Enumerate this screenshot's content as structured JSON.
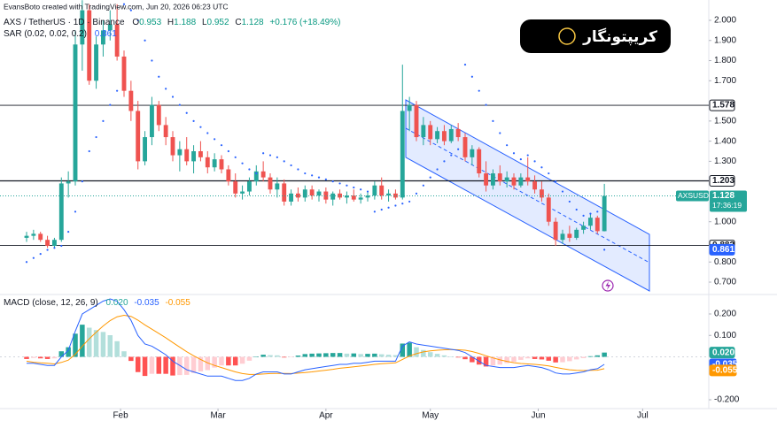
{
  "header": {
    "credit": "EvansBoto created with TradingView.com, Jun 20, 2026 06:23 UTC",
    "badge": "کریپتونگار"
  },
  "chart_data": [
    {
      "type": "candlestick",
      "title": "AXS / TetherUS · 1D · Binance",
      "symbol": "AXSUSDT",
      "countdown": "17:36:19",
      "ohlc_labels": [
        "O",
        "H",
        "L",
        "C"
      ],
      "change": "+0.176 (+18.49%)",
      "up_color": "#26a69a",
      "down_color": "#ef5350",
      "x": [
        4,
        6,
        8,
        10,
        12,
        14,
        16,
        18,
        20,
        22,
        24,
        26,
        28,
        30,
        32,
        34,
        36,
        38,
        40,
        42,
        44,
        46,
        48,
        50,
        52,
        54,
        56,
        58,
        60,
        62,
        64,
        66,
        68,
        70,
        72,
        74,
        76,
        78,
        80,
        82,
        84,
        86,
        88,
        90,
        92,
        94,
        96,
        98,
        100,
        102,
        104,
        106,
        108,
        110,
        112,
        114,
        116,
        118,
        120,
        122,
        124,
        126,
        128,
        130,
        132,
        134,
        136,
        138,
        140,
        142,
        144,
        146,
        148,
        150,
        152,
        154,
        156,
        158,
        160,
        162,
        164,
        166,
        168,
        170
      ],
      "ohlc": [
        [
          0.92,
          0.95,
          0.9,
          0.93
        ],
        [
          0.93,
          0.96,
          0.91,
          0.94
        ],
        [
          0.94,
          0.95,
          0.9,
          0.91
        ],
        [
          0.91,
          0.93,
          0.87,
          0.88
        ],
        [
          0.88,
          0.92,
          0.87,
          0.91
        ],
        [
          0.91,
          1.22,
          0.9,
          1.19
        ],
        [
          1.19,
          1.25,
          1.12,
          1.2
        ],
        [
          1.2,
          1.95,
          1.18,
          1.88
        ],
        [
          1.88,
          2.1,
          1.75,
          2.05
        ],
        [
          2.05,
          2.08,
          1.68,
          1.7
        ],
        [
          1.7,
          1.92,
          1.66,
          1.88
        ],
        [
          1.88,
          2.0,
          1.82,
          1.95
        ],
        [
          1.95,
          2.05,
          1.9,
          1.98
        ],
        [
          1.98,
          2.08,
          1.8,
          1.82
        ],
        [
          1.82,
          1.85,
          1.62,
          1.65
        ],
        [
          1.65,
          1.7,
          1.5,
          1.55
        ],
        [
          1.55,
          1.6,
          1.26,
          1.3
        ],
        [
          1.3,
          1.45,
          1.28,
          1.42
        ],
        [
          1.42,
          1.62,
          1.38,
          1.58
        ],
        [
          1.58,
          1.6,
          1.45,
          1.48
        ],
        [
          1.48,
          1.52,
          1.38,
          1.42
        ],
        [
          1.42,
          1.45,
          1.3,
          1.33
        ],
        [
          1.33,
          1.4,
          1.25,
          1.36
        ],
        [
          1.36,
          1.42,
          1.28,
          1.3
        ],
        [
          1.3,
          1.38,
          1.24,
          1.35
        ],
        [
          1.35,
          1.4,
          1.3,
          1.32
        ],
        [
          1.32,
          1.35,
          1.24,
          1.27
        ],
        [
          1.27,
          1.34,
          1.25,
          1.31
        ],
        [
          1.31,
          1.33,
          1.24,
          1.26
        ],
        [
          1.26,
          1.28,
          1.18,
          1.2
        ],
        [
          1.2,
          1.24,
          1.12,
          1.14
        ],
        [
          1.14,
          1.18,
          1.11,
          1.15
        ],
        [
          1.15,
          1.22,
          1.13,
          1.2
        ],
        [
          1.2,
          1.28,
          1.18,
          1.25
        ],
        [
          1.25,
          1.3,
          1.2,
          1.22
        ],
        [
          1.22,
          1.24,
          1.14,
          1.16
        ],
        [
          1.16,
          1.22,
          1.12,
          1.19
        ],
        [
          1.19,
          1.21,
          1.08,
          1.1
        ],
        [
          1.1,
          1.16,
          1.08,
          1.14
        ],
        [
          1.14,
          1.17,
          1.1,
          1.12
        ],
        [
          1.12,
          1.18,
          1.1,
          1.16
        ],
        [
          1.16,
          1.18,
          1.11,
          1.13
        ],
        [
          1.13,
          1.16,
          1.1,
          1.15
        ],
        [
          1.15,
          1.17,
          1.09,
          1.11
        ],
        [
          1.11,
          1.15,
          1.08,
          1.14
        ],
        [
          1.14,
          1.16,
          1.11,
          1.12
        ],
        [
          1.12,
          1.15,
          1.09,
          1.13
        ],
        [
          1.13,
          1.16,
          1.1,
          1.11
        ],
        [
          1.11,
          1.14,
          1.09,
          1.12
        ],
        [
          1.12,
          1.15,
          1.1,
          1.13
        ],
        [
          1.13,
          1.2,
          1.11,
          1.18
        ],
        [
          1.18,
          1.22,
          1.11,
          1.13
        ],
        [
          1.13,
          1.16,
          1.1,
          1.14
        ],
        [
          1.14,
          1.16,
          1.11,
          1.12
        ],
        [
          1.12,
          1.78,
          1.11,
          1.55
        ],
        [
          1.55,
          1.62,
          1.45,
          1.58
        ],
        [
          1.58,
          1.6,
          1.4,
          1.42
        ],
        [
          1.42,
          1.52,
          1.38,
          1.48
        ],
        [
          1.48,
          1.5,
          1.38,
          1.41
        ],
        [
          1.41,
          1.47,
          1.39,
          1.45
        ],
        [
          1.45,
          1.48,
          1.38,
          1.4
        ],
        [
          1.4,
          1.48,
          1.39,
          1.46
        ],
        [
          1.46,
          1.49,
          1.4,
          1.42
        ],
        [
          1.42,
          1.44,
          1.3,
          1.32
        ],
        [
          1.32,
          1.38,
          1.28,
          1.36
        ],
        [
          1.36,
          1.37,
          1.22,
          1.24
        ],
        [
          1.24,
          1.3,
          1.15,
          1.18
        ],
        [
          1.18,
          1.26,
          1.16,
          1.24
        ],
        [
          1.24,
          1.28,
          1.18,
          1.2
        ],
        [
          1.2,
          1.25,
          1.17,
          1.22
        ],
        [
          1.22,
          1.24,
          1.16,
          1.18
        ],
        [
          1.18,
          1.24,
          1.17,
          1.22
        ],
        [
          1.22,
          1.32,
          1.18,
          1.2
        ],
        [
          1.2,
          1.23,
          1.14,
          1.16
        ],
        [
          1.16,
          1.2,
          1.1,
          1.12
        ],
        [
          1.12,
          1.14,
          0.98,
          1.0
        ],
        [
          1.0,
          1.02,
          0.88,
          0.91
        ],
        [
          0.91,
          0.96,
          0.89,
          0.94
        ],
        [
          0.94,
          0.98,
          0.9,
          0.92
        ],
        [
          0.92,
          0.97,
          0.91,
          0.96
        ],
        [
          0.96,
          1.0,
          0.94,
          0.98
        ],
        [
          0.98,
          1.04,
          0.96,
          1.02
        ],
        [
          1.02,
          1.03,
          0.94,
          0.953
        ],
        [
          0.953,
          1.188,
          0.952,
          1.128
        ]
      ],
      "sar": {
        "name": "SAR (0.02, 0.02, 0.2)",
        "color": "#2962ff",
        "values": [
          0.8,
          0.82,
          0.84,
          0.86,
          0.87,
          0.88,
          0.95,
          1.05,
          1.2,
          1.35,
          1.42,
          1.5,
          1.58,
          1.65,
          2.08,
          2.05,
          2.0,
          1.9,
          1.8,
          1.72,
          1.66,
          1.62,
          1.58,
          1.54,
          1.5,
          1.47,
          1.44,
          1.41,
          1.38,
          1.35,
          1.32,
          1.29,
          1.26,
          1.24,
          1.34,
          1.33,
          1.32,
          1.3,
          1.28,
          1.26,
          1.24,
          1.23,
          1.22,
          1.21,
          1.2,
          1.19,
          1.18,
          1.17,
          1.16,
          1.15,
          1.05,
          1.06,
          1.07,
          1.08,
          1.09,
          1.1,
          1.14,
          1.18,
          1.22,
          1.26,
          1.3,
          1.33,
          1.36,
          1.78,
          1.72,
          1.65,
          1.58,
          1.5,
          1.44,
          1.38,
          1.34,
          1.31,
          1.33,
          1.3,
          1.27,
          1.24,
          1.2,
          1.15,
          1.1,
          1.06,
          1.03,
          1.04,
          1.05,
          0.861
        ]
      },
      "levels": [
        1.578,
        1.203,
        0.882
      ],
      "xlim": [
        4,
        200
      ],
      "xticks": [
        {
          "value": 31,
          "label": "Feb"
        },
        {
          "value": 59,
          "label": "Mar"
        },
        {
          "value": 90,
          "label": "Apr"
        },
        {
          "value": 120,
          "label": "May"
        },
        {
          "value": 151,
          "label": "Jun"
        },
        {
          "value": 181,
          "label": "Jul"
        }
      ],
      "ylim": [
        0.65,
        2.05
      ],
      "yticks": [
        {
          "value": 2,
          "label": "2.000"
        },
        {
          "value": 1.9,
          "label": "1.900"
        },
        {
          "value": 1.8,
          "label": "1.800"
        },
        {
          "value": 1.7,
          "label": "1.700"
        },
        {
          "value": 1.5,
          "label": "1.500"
        },
        {
          "value": 1.4,
          "label": "1.400"
        },
        {
          "value": 1.3,
          "label": "1.300"
        },
        {
          "value": 1,
          "label": "1.000"
        },
        {
          "value": 0.8,
          "label": "0.800"
        },
        {
          "value": 0.7,
          "label": "0.700"
        }
      ]
    },
    {
      "type": "macd",
      "title": "MACD (close, 12, 26, 9)",
      "histogram": {
        "colors": [
          "#26a69a",
          "#b2dfdb",
          "#ff5252",
          "#ffcdd2"
        ],
        "values": [
          -0.01,
          -0.005,
          -0.007,
          -0.01,
          -0.007,
          0.026,
          0.045,
          0.108,
          0.15,
          0.136,
          0.125,
          0.116,
          0.101,
          0.073,
          0.026,
          -0.019,
          -0.071,
          -0.089,
          -0.079,
          -0.079,
          -0.079,
          -0.087,
          -0.085,
          -0.084,
          -0.075,
          -0.068,
          -0.062,
          -0.05,
          -0.04,
          -0.04,
          -0.04,
          -0.032,
          -0.018,
          0.002,
          0.01,
          0.008,
          0.007,
          -0.003,
          -0.002,
          0.006,
          0.013,
          0.015,
          0.016,
          0.017,
          0.018,
          0.018,
          0.015,
          0.016,
          0.013,
          0.014,
          0.015,
          0.012,
          0.01,
          0.008,
          0.062,
          0.066,
          0.045,
          0.032,
          0.022,
          0.014,
          0.007,
          0.001,
          -0.003,
          -0.011,
          -0.025,
          -0.036,
          -0.045,
          -0.04,
          -0.036,
          -0.029,
          -0.023,
          -0.014,
          -0.007,
          -0.01,
          -0.012,
          -0.018,
          -0.026,
          -0.025,
          -0.02,
          -0.012,
          -0.006,
          0.003,
          0.007,
          0.02
        ],
        "value_label": "0.020"
      },
      "macd": {
        "color": "#2962ff",
        "values": [
          -0.03,
          -0.03,
          -0.035,
          -0.04,
          -0.04,
          0.0,
          0.03,
          0.12,
          0.2,
          0.22,
          0.24,
          0.26,
          0.27,
          0.26,
          0.22,
          0.17,
          0.1,
          0.06,
          0.05,
          0.03,
          0.01,
          -0.02,
          -0.04,
          -0.06,
          -0.07,
          -0.08,
          -0.09,
          -0.09,
          -0.09,
          -0.1,
          -0.11,
          -0.11,
          -0.1,
          -0.08,
          -0.07,
          -0.07,
          -0.07,
          -0.08,
          -0.08,
          -0.07,
          -0.06,
          -0.055,
          -0.05,
          -0.045,
          -0.04,
          -0.035,
          -0.035,
          -0.03,
          -0.03,
          -0.025,
          -0.02,
          -0.02,
          -0.02,
          -0.02,
          0.05,
          0.07,
          0.06,
          0.055,
          0.05,
          0.045,
          0.04,
          0.035,
          0.03,
          0.02,
          0.0,
          -0.02,
          -0.04,
          -0.045,
          -0.05,
          -0.05,
          -0.05,
          -0.045,
          -0.04,
          -0.045,
          -0.05,
          -0.06,
          -0.075,
          -0.08,
          -0.08,
          -0.075,
          -0.07,
          -0.06,
          -0.055,
          -0.035
        ],
        "value_label": "-0.035"
      },
      "signal": {
        "color": "#ff9800",
        "values": [
          -0.02,
          -0.025,
          -0.028,
          -0.03,
          -0.033,
          -0.026,
          -0.015,
          0.012,
          0.05,
          0.084,
          0.115,
          0.144,
          0.169,
          0.187,
          0.194,
          0.189,
          0.171,
          0.149,
          0.129,
          0.109,
          0.089,
          0.067,
          0.045,
          0.024,
          0.005,
          -0.012,
          -0.028,
          -0.04,
          -0.05,
          -0.06,
          -0.07,
          -0.078,
          -0.082,
          -0.082,
          -0.08,
          -0.078,
          -0.077,
          -0.077,
          -0.078,
          -0.076,
          -0.073,
          -0.07,
          -0.066,
          -0.062,
          -0.058,
          -0.053,
          -0.05,
          -0.046,
          -0.043,
          -0.039,
          -0.035,
          -0.032,
          -0.03,
          -0.028,
          -0.012,
          0.004,
          0.015,
          0.023,
          0.028,
          0.031,
          0.033,
          0.034,
          0.033,
          0.031,
          0.025,
          0.016,
          0.005,
          -0.005,
          -0.014,
          -0.021,
          -0.027,
          -0.031,
          -0.033,
          -0.035,
          -0.038,
          -0.042,
          -0.049,
          -0.055,
          -0.06,
          -0.063,
          -0.064,
          -0.063,
          -0.062,
          -0.055
        ],
        "value_label": "-0.055"
      },
      "ylim": [
        -0.23,
        0.28
      ],
      "yticks": [
        {
          "value": 0.2,
          "label": "0.200"
        },
        {
          "value": 0.1,
          "label": "0.100"
        },
        {
          "value": -0.2,
          "label": "-0.200"
        }
      ]
    }
  ]
}
